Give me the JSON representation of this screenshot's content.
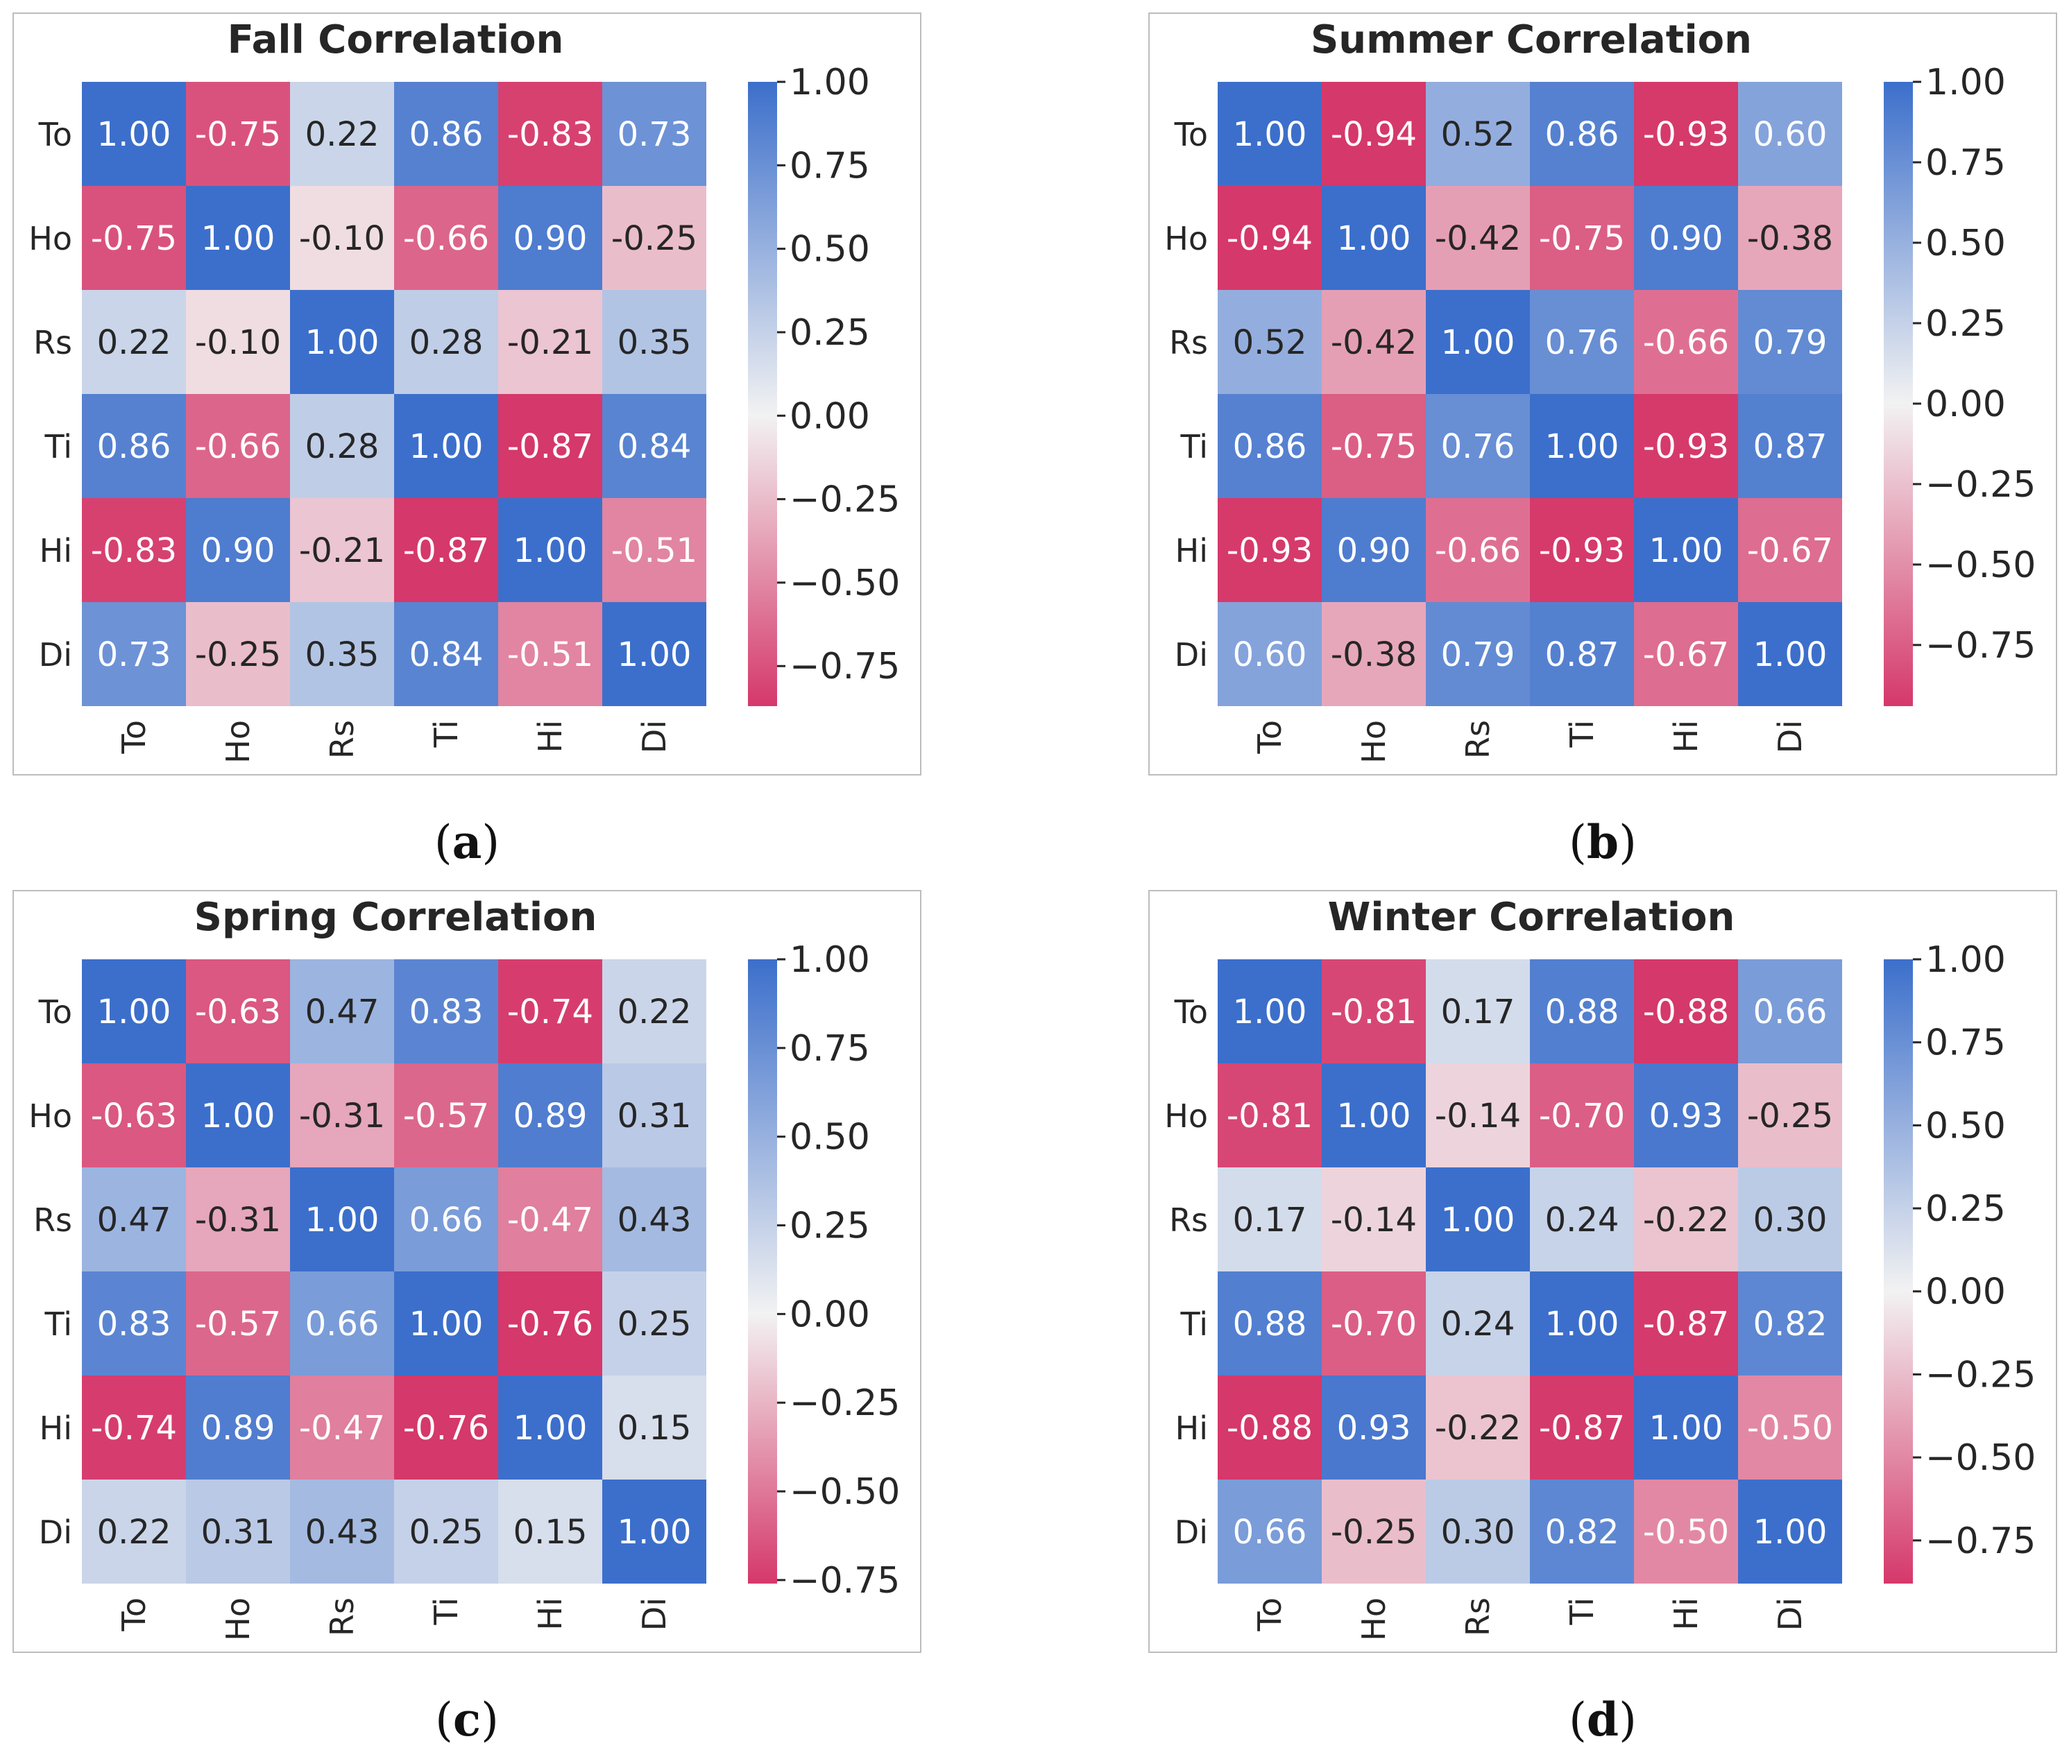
{
  "chart_data": [
    {
      "type": "heatmap",
      "title": "Fall Correlation",
      "caption": "a",
      "row_labels": [
        "To",
        "Ho",
        "Rs",
        "Ti",
        "Hi",
        "Di"
      ],
      "col_labels": [
        "To",
        "Ho",
        "Rs",
        "Ti",
        "Hi",
        "Di"
      ],
      "values": [
        [
          1.0,
          -0.75,
          0.22,
          0.86,
          -0.83,
          0.73
        ],
        [
          -0.75,
          1.0,
          -0.1,
          -0.66,
          0.9,
          -0.25
        ],
        [
          0.22,
          -0.1,
          1.0,
          0.28,
          -0.21,
          0.35
        ],
        [
          0.86,
          -0.66,
          0.28,
          1.0,
          -0.87,
          0.84
        ],
        [
          -0.83,
          0.9,
          -0.21,
          -0.87,
          1.0,
          -0.51
        ],
        [
          0.73,
          -0.25,
          0.35,
          0.84,
          -0.51,
          1.0
        ]
      ],
      "vmin": -0.87,
      "vmax": 1.0,
      "colorbar_ticks": [
        "1.00",
        "0.75",
        "0.50",
        "0.25",
        "0.00",
        "−0.25",
        "−0.50",
        "−0.75"
      ],
      "colorbar_tick_values": [
        1.0,
        0.75,
        0.5,
        0.25,
        0.0,
        -0.25,
        -0.5,
        -0.75
      ]
    },
    {
      "type": "heatmap",
      "title": "Summer Correlation",
      "caption": "b",
      "row_labels": [
        "To",
        "Ho",
        "Rs",
        "Ti",
        "Hi",
        "Di"
      ],
      "col_labels": [
        "To",
        "Ho",
        "Rs",
        "Ti",
        "Hi",
        "Di"
      ],
      "values": [
        [
          1.0,
          -0.94,
          0.52,
          0.86,
          -0.93,
          0.6
        ],
        [
          -0.94,
          1.0,
          -0.42,
          -0.75,
          0.9,
          -0.38
        ],
        [
          0.52,
          -0.42,
          1.0,
          0.76,
          -0.66,
          0.79
        ],
        [
          0.86,
          -0.75,
          0.76,
          1.0,
          -0.93,
          0.87
        ],
        [
          -0.93,
          0.9,
          -0.66,
          -0.93,
          1.0,
          -0.67
        ],
        [
          0.6,
          -0.38,
          0.79,
          0.87,
          -0.67,
          1.0
        ]
      ],
      "vmin": -0.94,
      "vmax": 1.0,
      "colorbar_ticks": [
        "1.00",
        "0.75",
        "0.50",
        "0.25",
        "0.00",
        "−0.25",
        "−0.50",
        "−0.75"
      ],
      "colorbar_tick_values": [
        1.0,
        0.75,
        0.5,
        0.25,
        0.0,
        -0.25,
        -0.5,
        -0.75
      ]
    },
    {
      "type": "heatmap",
      "title": "Spring Correlation",
      "caption": "c",
      "row_labels": [
        "To",
        "Ho",
        "Rs",
        "Ti",
        "Hi",
        "Di"
      ],
      "col_labels": [
        "To",
        "Ho",
        "Rs",
        "Ti",
        "Hi",
        "Di"
      ],
      "values": [
        [
          1.0,
          -0.63,
          0.47,
          0.83,
          -0.74,
          0.22
        ],
        [
          -0.63,
          1.0,
          -0.31,
          -0.57,
          0.89,
          0.31
        ],
        [
          0.47,
          -0.31,
          1.0,
          0.66,
          -0.47,
          0.43
        ],
        [
          0.83,
          -0.57,
          0.66,
          1.0,
          -0.76,
          0.25
        ],
        [
          -0.74,
          0.89,
          -0.47,
          -0.76,
          1.0,
          0.15
        ],
        [
          0.22,
          0.31,
          0.43,
          0.25,
          0.15,
          1.0
        ]
      ],
      "vmin": -0.76,
      "vmax": 1.0,
      "colorbar_ticks": [
        "1.00",
        "0.75",
        "0.50",
        "0.25",
        "0.00",
        "−0.25",
        "−0.50",
        "−0.75"
      ],
      "colorbar_tick_values": [
        1.0,
        0.75,
        0.5,
        0.25,
        0.0,
        -0.25,
        -0.5,
        -0.75
      ]
    },
    {
      "type": "heatmap",
      "title": "Winter Correlation",
      "caption": "d",
      "row_labels": [
        "To",
        "Ho",
        "Rs",
        "Ti",
        "Hi",
        "Di"
      ],
      "col_labels": [
        "To",
        "Ho",
        "Rs",
        "Ti",
        "Hi",
        "Di"
      ],
      "values": [
        [
          1.0,
          -0.81,
          0.17,
          0.88,
          -0.88,
          0.66
        ],
        [
          -0.81,
          1.0,
          -0.14,
          -0.7,
          0.93,
          -0.25
        ],
        [
          0.17,
          -0.14,
          1.0,
          0.24,
          -0.22,
          0.3
        ],
        [
          0.88,
          -0.7,
          0.24,
          1.0,
          -0.87,
          0.82
        ],
        [
          -0.88,
          0.93,
          -0.22,
          -0.87,
          1.0,
          -0.5
        ],
        [
          0.66,
          -0.25,
          0.3,
          0.82,
          -0.5,
          1.0
        ]
      ],
      "vmin": -0.88,
      "vmax": 1.0,
      "colorbar_ticks": [
        "1.00",
        "0.75",
        "0.50",
        "0.25",
        "0.00",
        "−0.25",
        "−0.50",
        "−0.75"
      ],
      "colorbar_tick_values": [
        1.0,
        0.75,
        0.5,
        0.25,
        0.0,
        -0.25,
        -0.5,
        -0.75
      ]
    }
  ],
  "colors": {
    "positive": "#3c6fcb",
    "neutral": "#f2f2f2",
    "negative": "#d5386a"
  }
}
